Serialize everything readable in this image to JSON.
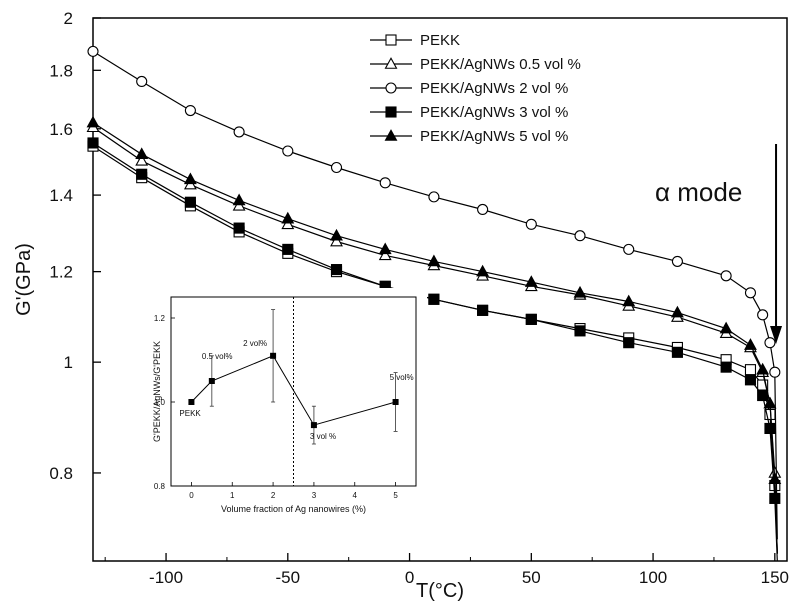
{
  "chart_data": [
    {
      "type": "line",
      "xlabel": "T(°C)",
      "ylabel": "G'(GPa)",
      "xlim": [
        -130,
        155
      ],
      "ylim": [
        0.67,
        2.0
      ],
      "yscale": "log",
      "grid": false,
      "legend_position": "top-right",
      "x_ticks": [
        -100,
        -50,
        0,
        50,
        100,
        150
      ],
      "y_ticks": [
        0.8,
        1,
        1.2,
        1.4,
        1.6,
        1.8,
        2
      ],
      "x_tick_labels": [
        "-100",
        "-50",
        "0",
        "50",
        "100",
        "150"
      ],
      "y_tick_labels": [
        "0.8",
        "1",
        "1.2",
        "1.4",
        "1.6",
        "1.8",
        "2"
      ],
      "annotation": "α mode",
      "series": [
        {
          "name": "PEKK",
          "marker": "open-square",
          "x": [
            -130,
            -110,
            -90,
            -70,
            -50,
            -30,
            -10,
            10,
            30,
            50,
            70,
            90,
            110,
            130,
            140,
            145,
            148,
            150,
            151
          ],
          "y": [
            1.545,
            1.45,
            1.37,
            1.3,
            1.245,
            1.2,
            1.165,
            1.135,
            1.11,
            1.09,
            1.07,
            1.05,
            1.03,
            1.005,
            0.985,
            0.955,
            0.9,
            0.78,
            0.68
          ]
        },
        {
          "name": "PEKK/AgNWs 0.5 vol %",
          "marker": "open-triangle",
          "x": [
            -130,
            -110,
            -90,
            -70,
            -50,
            -30,
            -10,
            10,
            30,
            50,
            70,
            90,
            110,
            130,
            140,
            145,
            148,
            150,
            151
          ],
          "y": [
            1.605,
            1.5,
            1.43,
            1.37,
            1.32,
            1.275,
            1.24,
            1.215,
            1.19,
            1.165,
            1.145,
            1.12,
            1.095,
            1.06,
            1.03,
            0.98,
            0.92,
            0.8,
            0.68
          ]
        },
        {
          "name": "PEKK/AgNWs 2 vol %",
          "marker": "open-circle",
          "x": [
            -130,
            -110,
            -90,
            -70,
            -50,
            -30,
            -10,
            10,
            30,
            50,
            70,
            90,
            110,
            130,
            140,
            145,
            148,
            150,
            151
          ],
          "y": [
            1.87,
            1.76,
            1.66,
            1.59,
            1.53,
            1.48,
            1.435,
            1.395,
            1.36,
            1.32,
            1.29,
            1.255,
            1.225,
            1.19,
            1.15,
            1.1,
            1.04,
            0.98,
            0.7
          ]
        },
        {
          "name": "PEKK/AgNWs 3 vol %",
          "marker": "filled-square",
          "x": [
            -130,
            -110,
            -90,
            -70,
            -50,
            -30,
            -10,
            10,
            30,
            50,
            70,
            90,
            110,
            130,
            140,
            145,
            148,
            150,
            151
          ],
          "y": [
            1.555,
            1.46,
            1.38,
            1.31,
            1.255,
            1.205,
            1.165,
            1.135,
            1.11,
            1.09,
            1.065,
            1.04,
            1.02,
            0.99,
            0.965,
            0.935,
            0.875,
            0.76,
            0.67
          ]
        },
        {
          "name": "PEKK/AgNWs 5 vol %",
          "marker": "filled-triangle",
          "x": [
            -130,
            -110,
            -90,
            -70,
            -50,
            -30,
            -10,
            10,
            30,
            50,
            70,
            90,
            110,
            130,
            140,
            145,
            148,
            150,
            151
          ],
          "y": [
            1.62,
            1.52,
            1.445,
            1.385,
            1.335,
            1.29,
            1.255,
            1.225,
            1.2,
            1.175,
            1.15,
            1.13,
            1.105,
            1.07,
            1.035,
            0.985,
            0.92,
            0.79,
            0.68
          ]
        }
      ]
    },
    {
      "type": "scatter",
      "placement": "inset",
      "xlabel": "Volume fraction of Ag nanowires (%)",
      "ylabel": "G'PEKK/AgNWs/G'PEKK",
      "xlim": [
        -0.5,
        5.5
      ],
      "ylim": [
        0.8,
        1.25
      ],
      "x_ticks": [
        0,
        1,
        2,
        3,
        4,
        5
      ],
      "y_ticks": [
        0.8,
        1.0,
        1.2
      ],
      "x_tick_labels": [
        "0",
        "1",
        "2",
        "3",
        "4",
        "5"
      ],
      "y_tick_labels": [
        "0.8",
        "1.0",
        "1.2"
      ],
      "vertical_reference_line_x": 2.5,
      "series": [
        {
          "x": [
            0,
            0.5,
            2,
            3,
            5
          ],
          "y": [
            1.0,
            1.05,
            1.11,
            0.945,
            1.0
          ],
          "error": [
            0.0,
            0.06,
            0.11,
            0.045,
            0.07
          ],
          "point_labels": [
            "PEKK",
            "0.5 vol%",
            "2 vol%",
            "3 vol %",
            "5 vol%"
          ]
        }
      ]
    }
  ]
}
